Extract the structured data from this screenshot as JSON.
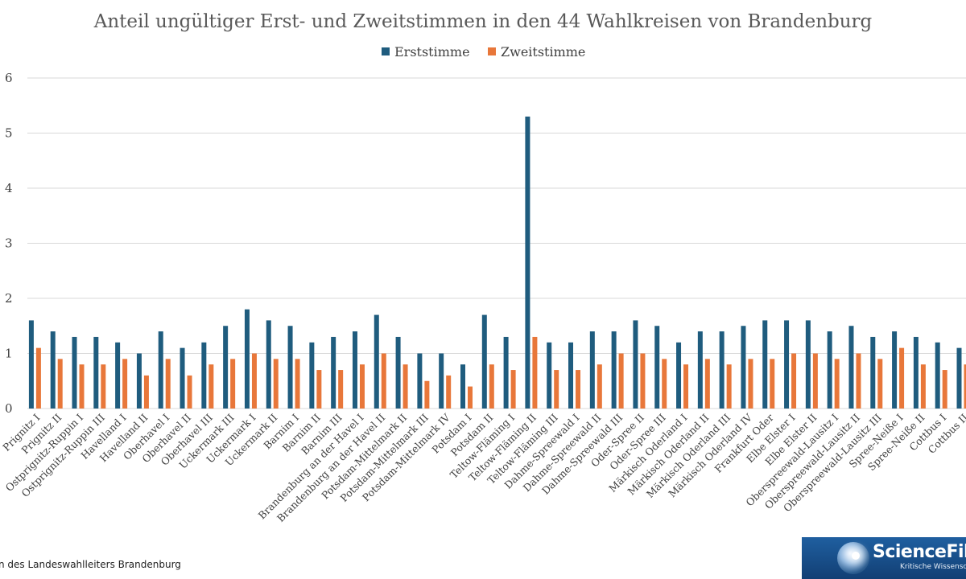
{
  "colors": {
    "erst": "#1f5c7e",
    "zweit": "#e8773a",
    "grid": "#d9d9d9",
    "text": "#404040"
  },
  "source_text": "n des Landeswahlleiters Brandenburg",
  "logo": {
    "title": "ScienceFiles",
    "subtitle": "Kritische Wissenschaft",
    "icon": "globe-icon"
  },
  "chart_data": {
    "type": "bar",
    "title": "Anteil ungültiger Erst- und Zweitstimmen in den 44 Wahlkreisen von Brandenburg",
    "xlabel": "",
    "ylabel": "",
    "ylim": [
      0,
      6
    ],
    "yticks": [
      "0",
      "1",
      "2",
      "3",
      "4",
      "5",
      "6"
    ],
    "grid": true,
    "legend": "top-center",
    "categories": [
      "Prignitz I",
      "Prignitz II",
      "Ostprignitz-Ruppin I",
      "Ostprignitz-Ruppin III",
      "Havelland I",
      "Havelland II",
      "Oberhavel I",
      "Oberhavel II",
      "Oberhavel III",
      "Uckermark III",
      "Uckermark I",
      "Uckermark II",
      "Barnim I",
      "Barnim II",
      "Barnim III",
      "Brandenburg an der Havel I",
      "Brandenburg an der Havel II",
      "Potsdam-Mittelmark II",
      "Potsdam-Mittelmark III",
      "Potsdam-Mittelmark IV",
      "Potsdam I",
      "Potsdam II",
      "Teltow-Fläming I",
      "Teltow-Fläming II",
      "Teltow-Fläming III",
      "Dahme-Spreewald I",
      "Dahme-Spreewald II",
      "Dahme-Spreewald III",
      "Oder-Spree II",
      "Oder-Spree III",
      "Märkisch Oderland I",
      "Märkisch Oderland II",
      "Märkisch Oderland III",
      "Märkisch Oderland IV",
      "Frankfurt Oder",
      "Elbe Elster I",
      "Elbe Elster II",
      "Oberspreewald-Lausitz I",
      "Oberspreewald-Lausitz II",
      "Oberspreewald-Lausitz III",
      "Spree-Neiße I",
      "Spree-Neiße II",
      "Cottbus I",
      "Cottbus II"
    ],
    "series": [
      {
        "name": "Erststimme",
        "values": [
          1.6,
          1.4,
          1.3,
          1.3,
          1.2,
          1.0,
          1.4,
          1.1,
          1.2,
          1.5,
          1.8,
          1.6,
          1.5,
          1.2,
          1.3,
          1.4,
          1.7,
          1.3,
          1.0,
          1.0,
          0.8,
          1.7,
          1.3,
          5.3,
          1.2,
          1.2,
          1.4,
          1.4,
          1.6,
          1.5,
          1.2,
          1.4,
          1.4,
          1.5,
          1.6,
          1.6,
          1.6,
          1.4,
          1.5,
          1.3,
          1.4,
          1.3,
          1.2,
          1.1
        ]
      },
      {
        "name": "Zweitstimme",
        "values": [
          1.1,
          0.9,
          0.8,
          0.8,
          0.9,
          0.6,
          0.9,
          0.6,
          0.8,
          0.9,
          1.0,
          0.9,
          0.9,
          0.7,
          0.7,
          0.8,
          1.0,
          0.8,
          0.5,
          0.6,
          0.4,
          0.8,
          0.7,
          1.3,
          0.7,
          0.7,
          0.8,
          1.0,
          1.0,
          0.9,
          0.8,
          0.9,
          0.8,
          0.9,
          0.9,
          1.0,
          1.0,
          0.9,
          1.0,
          0.9,
          1.1,
          0.8,
          0.7,
          0.8
        ]
      }
    ]
  }
}
